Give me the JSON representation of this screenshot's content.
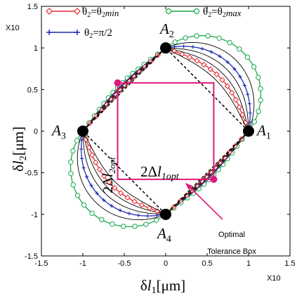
{
  "chart_data": {
    "type": "line",
    "xlabel": "δl1[μm]",
    "xlabel_parts": {
      "pre": "δ",
      "var": "l",
      "sub": "1",
      "post": "[μm]"
    },
    "ylabel": "δl2[μm]",
    "ylabel_parts": {
      "pre": "δ",
      "var": "l",
      "sub": "2",
      "post": "[μm]"
    },
    "xlim": [
      -1.5,
      1.5
    ],
    "ylim": [
      -1.5,
      1.5
    ],
    "xticks": [
      -1.5,
      -1,
      -0.5,
      0,
      0.5,
      1,
      1.5
    ],
    "yticks": [
      -1.5,
      -1,
      -0.5,
      0,
      0.5,
      1,
      1.5
    ],
    "xtick_labels": [
      "-1.5",
      "-1",
      "-0.5",
      "0",
      "0.5",
      "1",
      "1.5"
    ],
    "ytick_labels": [
      "-1.5",
      "-1",
      "-0.5",
      "0",
      "0.5",
      "1",
      "1.5"
    ],
    "x_exponent_label": "X10",
    "y_exponent_label": "X10",
    "grid": false,
    "legend_position": "top",
    "legend": [
      {
        "text": "θ2=θ2min",
        "text_parts": [
          "θ",
          "2",
          "=θ",
          "2",
          "min"
        ],
        "color": "#e8262c",
        "marker": "diamond"
      },
      {
        "text": "θ2=θ2max",
        "text_parts": [
          "θ",
          "2",
          "=θ",
          "2",
          "max"
        ],
        "color": "#1aa84a",
        "marker": "circle"
      },
      {
        "text": "θ2=π/2",
        "text_parts": [
          "θ",
          "2",
          "=π/2"
        ],
        "color": "#1f2bb5",
        "marker": "plus"
      }
    ],
    "curve_family": {
      "description": "closed curves through A1..A4; k = lobe bulge (0 = straight diamond edges)",
      "k_values": [
        0.88,
        0.7,
        0.58,
        0.48,
        0.38,
        0.3,
        0.22
      ],
      "series": [
        {
          "name": "θ2=θ2min",
          "k": 0.3,
          "color": "#e8262c",
          "marker": "diamond"
        },
        {
          "name": "θ2=π/2",
          "k": 0.58,
          "color": "#1f2bb5",
          "marker": "plus"
        },
        {
          "name": "θ2=θ2max",
          "k": 0.88,
          "color": "#1aa84a",
          "marker": "circle"
        }
      ],
      "other_color": "#000000"
    },
    "points": [
      {
        "label": "A1",
        "label_parts": {
          "var": "A",
          "sub": "1"
        },
        "x": 1,
        "y": 0
      },
      {
        "label": "A2",
        "label_parts": {
          "var": "A",
          "sub": "2"
        },
        "x": 0,
        "y": 1
      },
      {
        "label": "A3",
        "label_parts": {
          "var": "A",
          "sub": "3"
        },
        "x": -1,
        "y": 0
      },
      {
        "label": "A4",
        "label_parts": {
          "var": "A",
          "sub": "4"
        },
        "x": 0,
        "y": -1
      }
    ],
    "diamond": {
      "style": "dashed",
      "color": "#000000",
      "vertices": [
        [
          1,
          0
        ],
        [
          0,
          1
        ],
        [
          -1,
          0
        ],
        [
          0,
          -1
        ]
      ]
    },
    "tolerance_box": {
      "color": "#e0197d",
      "x_range": [
        -0.58,
        0.58
      ],
      "y_range": [
        -0.58,
        0.58
      ],
      "corner_points": [
        [
          -0.58,
          0.58
        ],
        [
          0.58,
          -0.58
        ]
      ]
    },
    "dimension_labels": {
      "horizontal": {
        "text": "2Δl1opt",
        "parts": {
          "pre": "2Δ",
          "var": "l",
          "sub": "1opt"
        }
      },
      "vertical": {
        "text": "2Δl2opt",
        "parts": {
          "pre": "2Δ",
          "var": "l",
          "sub": "2opt"
        }
      }
    },
    "annotation": {
      "lines": [
        "Optimal",
        "Tolerance Box"
      ],
      "arrow_color": "#e0197d"
    }
  }
}
